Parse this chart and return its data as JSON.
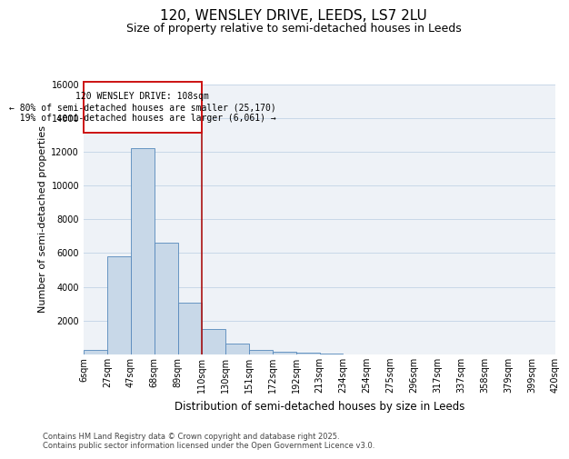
{
  "title": "120, WENSLEY DRIVE, LEEDS, LS7 2LU",
  "subtitle": "Size of property relative to semi-detached houses in Leeds",
  "xlabel": "Distribution of semi-detached houses by size in Leeds",
  "ylabel": "Number of semi-detached properties",
  "bin_labels": [
    "6sqm",
    "27sqm",
    "47sqm",
    "68sqm",
    "89sqm",
    "110sqm",
    "130sqm",
    "151sqm",
    "172sqm",
    "192sqm",
    "213sqm",
    "234sqm",
    "254sqm",
    "275sqm",
    "296sqm",
    "317sqm",
    "337sqm",
    "358sqm",
    "379sqm",
    "399sqm",
    "420sqm"
  ],
  "bar_heights": [
    250,
    5800,
    12200,
    6600,
    3050,
    1500,
    620,
    270,
    170,
    100,
    70,
    0,
    0,
    0,
    0,
    0,
    0,
    0,
    0,
    0
  ],
  "bar_color": "#c8d8e8",
  "bar_edge_color": "#5588bb",
  "vline_x": 5,
  "vline_color": "#aa1111",
  "annotation_text": "120 WENSLEY DRIVE: 108sqm\n← 80% of semi-detached houses are smaller (25,170)\n  19% of semi-detached houses are larger (6,061) →",
  "annotation_box_color": "#cc1111",
  "ylim": [
    0,
    16000
  ],
  "yticks": [
    0,
    2000,
    4000,
    6000,
    8000,
    10000,
    12000,
    14000,
    16000
  ],
  "grid_color": "#c8d8e8",
  "background_color": "#eef2f7",
  "footnote": "Contains HM Land Registry data © Crown copyright and database right 2025.\nContains public sector information licensed under the Open Government Licence v3.0.",
  "title_fontsize": 11,
  "subtitle_fontsize": 9,
  "ylabel_fontsize": 8,
  "xlabel_fontsize": 8.5,
  "tick_fontsize": 7,
  "annotation_fontsize": 7,
  "footnote_fontsize": 6
}
